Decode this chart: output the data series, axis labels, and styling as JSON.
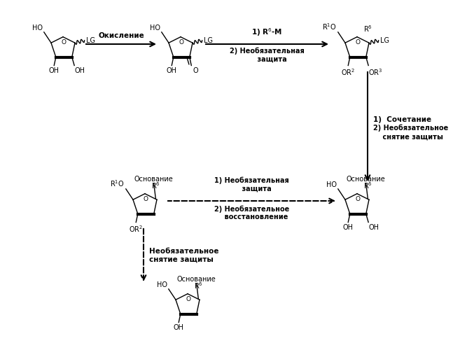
{
  "background_color": "#ffffff",
  "fig_width": 6.67,
  "fig_height": 5.0,
  "dpi": 100,
  "molecule_color": "#000000",
  "annotations": {
    "oxidation": "Окисление",
    "step1_R6M": "1) R$^6$-M",
    "step2_opt_protect": "2) Необязательная\n    защита",
    "step1_coupling": "1)  Сочетание",
    "step2_opt_deprotect": "2) Необязательное\n    снятие защиты",
    "step1_opt_protect2": "1) Необязательная\n    защита",
    "step2_opt_restore": "2) Необязательное\n    восстановление",
    "opt_deprotect_final": "Необязательное\nснятие защиты",
    "base": "Основание"
  }
}
